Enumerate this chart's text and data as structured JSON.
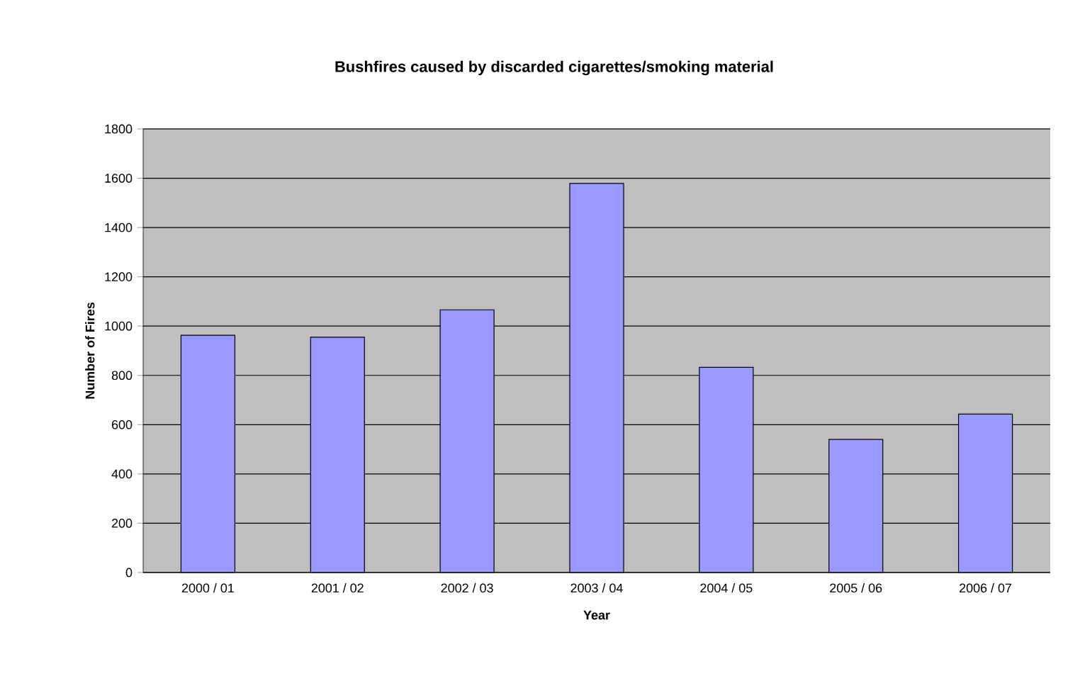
{
  "chart_data": {
    "type": "bar",
    "title": "Bushfires caused by discarded cigarettes/smoking material",
    "xlabel": "Year",
    "ylabel": "Number of Fires",
    "categories": [
      "2000 / 01",
      "2001 / 02",
      "2002 / 03",
      "2003 / 04",
      "2004 / 05",
      "2005 / 06",
      "2006 / 07"
    ],
    "values": [
      963,
      955,
      1066,
      1579,
      833,
      540,
      643
    ],
    "color": "#9999ff",
    "ylim": [
      0,
      1800
    ],
    "yticks": [
      0,
      200,
      400,
      600,
      800,
      1000,
      1200,
      1400,
      1600,
      1800
    ],
    "grid": "y"
  }
}
